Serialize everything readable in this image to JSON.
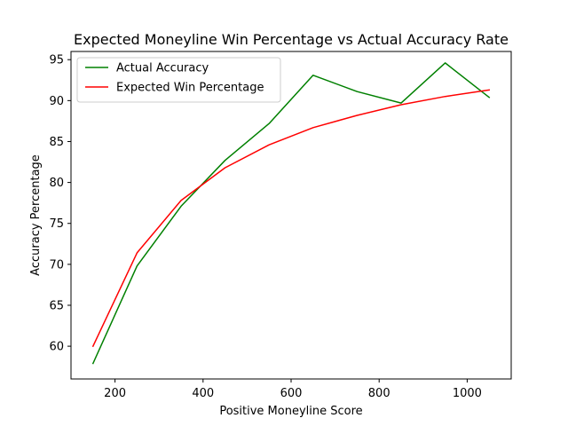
{
  "chart_data": {
    "type": "line",
    "title": "Expected Moneyline Win Percentage vs Actual Accuracy Rate",
    "xlabel": "Positive Moneyline Score",
    "ylabel": "Accuracy Percentage",
    "x": [
      150,
      250,
      350,
      450,
      550,
      650,
      750,
      850,
      950,
      1050
    ],
    "xlim": [
      100,
      1100
    ],
    "ylim": [
      56,
      96
    ],
    "xticks": [
      200,
      400,
      600,
      800,
      1000
    ],
    "yticks": [
      60,
      65,
      70,
      75,
      80,
      85,
      90,
      95
    ],
    "grid": false,
    "legend_position": "top-left",
    "series": [
      {
        "name": "Actual Accuracy",
        "color": "#008000",
        "values": [
          57.9,
          69.8,
          77.1,
          82.7,
          87.2,
          93.1,
          91.1,
          89.7,
          94.6,
          90.4
        ]
      },
      {
        "name": "Expected Win Percentage",
        "color": "#ff0000",
        "values": [
          60.0,
          71.4,
          77.8,
          81.8,
          84.6,
          86.7,
          88.2,
          89.5,
          90.5,
          91.3
        ]
      }
    ]
  }
}
